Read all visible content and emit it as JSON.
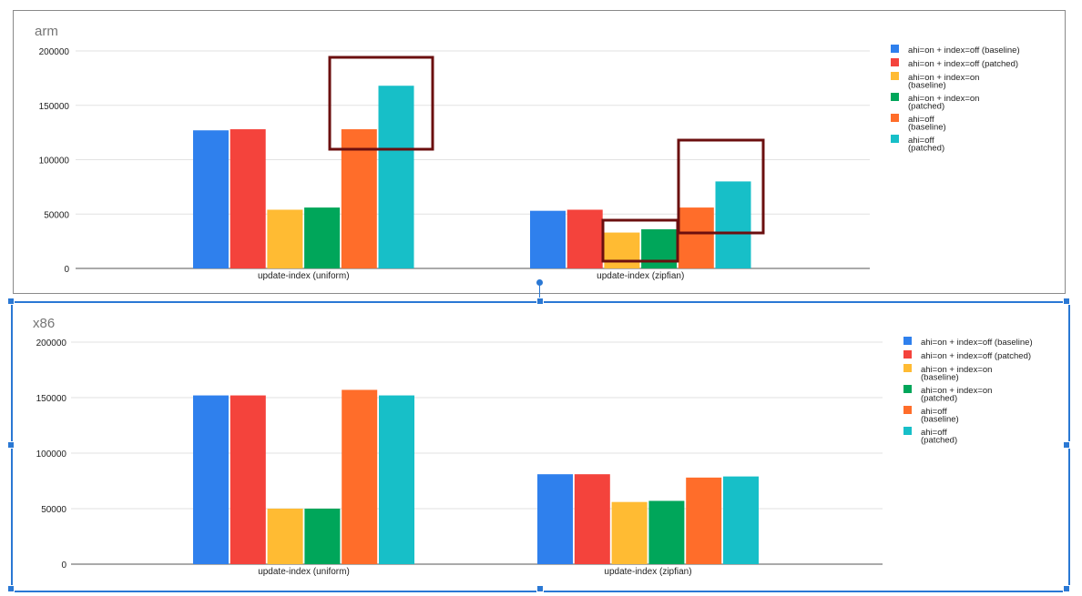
{
  "chart_data": [
    {
      "type": "bar",
      "title": "arm",
      "categories": [
        "update-index (uniform)",
        "update-index (zipfian)"
      ],
      "ylim": [
        0,
        200000
      ],
      "yticks": [
        "0",
        "50000",
        "100000",
        "150000",
        "200000"
      ],
      "grid": true,
      "legend_position": "right",
      "series": [
        {
          "name": [
            "ahi=on + index=off (baseline)"
          ],
          "color": "#2f80ed",
          "values": [
            127000,
            53000
          ]
        },
        {
          "name": [
            "ahi=on + index=off (patched)"
          ],
          "color": "#f4433c",
          "values": [
            128000,
            54000
          ]
        },
        {
          "name": [
            "ahi=on + index=on",
            "(baseline)"
          ],
          "color": "#ffbb33",
          "values": [
            54000,
            33000
          ]
        },
        {
          "name": [
            "ahi=on + index=on",
            "(patched)"
          ],
          "color": "#00a65a",
          "values": [
            56000,
            36000
          ]
        },
        {
          "name": [
            "ahi=off",
            "(baseline)"
          ],
          "color": "#ff6d2a",
          "values": [
            128000,
            56000
          ]
        },
        {
          "name": [
            "ahi=off",
            "(patched)"
          ],
          "color": "#17bfc8",
          "values": [
            168000,
            80000
          ]
        }
      ],
      "highlight_boxes_color": "#6b0f0f"
    },
    {
      "type": "bar",
      "title": "x86",
      "categories": [
        "update-index (uniform)",
        "update-index (zipfian)"
      ],
      "ylim": [
        0,
        200000
      ],
      "yticks": [
        "0",
        "50000",
        "100000",
        "150000",
        "200000"
      ],
      "grid": true,
      "legend_position": "right",
      "series": [
        {
          "name": [
            "ahi=on + index=off (baseline)"
          ],
          "color": "#2f80ed",
          "values": [
            152000,
            81000
          ]
        },
        {
          "name": [
            "ahi=on + index=off (patched)"
          ],
          "color": "#f4433c",
          "values": [
            152000,
            81000
          ]
        },
        {
          "name": [
            "ahi=on + index=on",
            "(baseline)"
          ],
          "color": "#ffbb33",
          "values": [
            50000,
            56000
          ]
        },
        {
          "name": [
            "ahi=on + index=on",
            "(patched)"
          ],
          "color": "#00a65a",
          "values": [
            50000,
            57000
          ]
        },
        {
          "name": [
            "ahi=off",
            "(baseline)"
          ],
          "color": "#ff6d2a",
          "values": [
            157000,
            78000
          ]
        },
        {
          "name": [
            "ahi=off",
            "(patched)"
          ],
          "color": "#17bfc8",
          "values": [
            152000,
            79000
          ]
        }
      ],
      "selection_color": "#2a78d4"
    }
  ]
}
